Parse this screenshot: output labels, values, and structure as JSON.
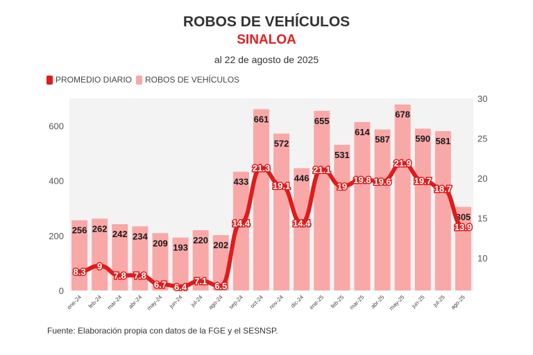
{
  "header": {
    "title": "ROBOS DE VEHÍCULOS",
    "subtitle": "SINALOA",
    "date": "al 22 de agosto de 2025"
  },
  "source": "Fuente: Elaboración propia con datos de la FGE y el SESNSP.",
  "colors": {
    "bar": "#f9a8a8",
    "line": "#e01b1b",
    "plot_bg": "#f3f3f3"
  },
  "chart_data": {
    "type": "bar+line",
    "categories": [
      "ene-24",
      "feb-24",
      "mar-24",
      "abr-24",
      "may-24",
      "jun-24",
      "jul-24",
      "ago-24",
      "sep-24",
      "oct-24",
      "nov-24",
      "dic-24",
      "ene-25",
      "feb-25",
      "mar-25",
      "abr-25",
      "may-25",
      "jun-25",
      "jul-25",
      "ago-25"
    ],
    "series": [
      {
        "name": "ROBOS DE VEHÍCULOS",
        "type": "bar",
        "axis": "left",
        "values": [
          256,
          262,
          242,
          234,
          209,
          193,
          220,
          202,
          433,
          661,
          572,
          446,
          655,
          531,
          614,
          587,
          678,
          590,
          581,
          305
        ]
      },
      {
        "name": "PROMEDIO DIARIO",
        "type": "line",
        "axis": "right",
        "values": [
          8.3,
          9,
          7.8,
          7.8,
          6.7,
          6.4,
          7.1,
          6.5,
          14.4,
          21.3,
          19.1,
          14.4,
          21.1,
          19,
          19.8,
          19.6,
          21.9,
          19.7,
          18.7,
          13.9
        ]
      }
    ],
    "left_axis": {
      "ylim": [
        0,
        700
      ],
      "ticks": [
        0,
        200,
        400,
        600
      ]
    },
    "right_axis": {
      "ylim": [
        5.9,
        30
      ],
      "ticks": [
        10,
        15,
        20,
        25,
        30
      ]
    },
    "legend": "top-left",
    "grid": false
  }
}
